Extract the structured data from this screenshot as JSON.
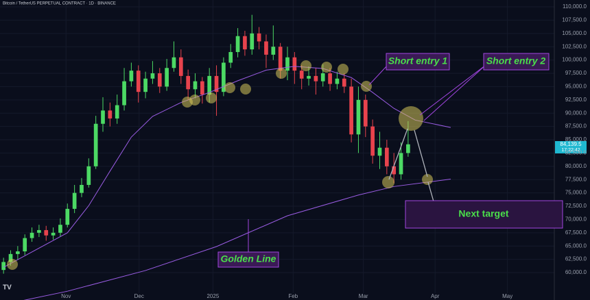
{
  "chart_data": {
    "type": "candlestick",
    "title": "Bitcoin / TetherUS PERPETUAL CONTRACT · 1D · BINANCE",
    "up_color": "#4cd964",
    "down_color": "#e8434d",
    "open": [
      60500,
      62000,
      63500,
      64000,
      66500,
      67500,
      68000,
      67000,
      67500,
      69000,
      72000,
      75000,
      76500,
      80000,
      88000,
      90500,
      89000,
      91500,
      96000,
      98000,
      94000,
      96500,
      97500,
      95000,
      98500,
      100500,
      97000,
      94500,
      96000,
      93500,
      97000,
      94000,
      99500,
      101500,
      104500,
      102000,
      105000,
      103500,
      101000,
      102500,
      98000,
      100500,
      98000,
      96500,
      97000,
      96000,
      97500,
      95500,
      96500,
      95000,
      86000,
      92500,
      87500,
      82000,
      83500,
      80000,
      78500,
      82500
    ],
    "high": [
      62800,
      64200,
      65000,
      67200,
      68500,
      69000,
      68800,
      68500,
      70200,
      73000,
      76500,
      77800,
      81500,
      89500,
      93000,
      92000,
      93500,
      98500,
      99500,
      99000,
      97800,
      99800,
      98500,
      100200,
      103500,
      102000,
      98200,
      97500,
      96800,
      98500,
      99000,
      100500,
      103000,
      106000,
      105500,
      108500,
      106200,
      104800,
      106500,
      103200,
      102500,
      101500,
      99000,
      98800,
      98500,
      99200,
      98500,
      97800,
      97500,
      96500,
      95000,
      93500,
      88800,
      86500,
      85000,
      82500,
      84500,
      88500
    ],
    "low": [
      59800,
      61300,
      62500,
      63300,
      65800,
      66700,
      66000,
      66200,
      66800,
      68500,
      71200,
      74200,
      76000,
      79500,
      86500,
      87500,
      88000,
      90500,
      95000,
      92000,
      92800,
      95500,
      93800,
      94200,
      97800,
      95500,
      92500,
      92800,
      91800,
      92000,
      89500,
      93200,
      98500,
      100500,
      100800,
      101000,
      102000,
      98500,
      100000,
      96500,
      96200,
      95500,
      94500,
      95200,
      93500,
      95000,
      94200,
      94500,
      93800,
      84500,
      82500,
      85500,
      80500,
      79500,
      78500,
      76800,
      77500,
      81800
    ],
    "close": [
      62000,
      63500,
      64000,
      66500,
      67500,
      68000,
      67000,
      67500,
      69000,
      72000,
      75000,
      76500,
      80000,
      88000,
      90500,
      89000,
      91500,
      96000,
      98000,
      94000,
      96500,
      97500,
      95000,
      98500,
      100500,
      97000,
      94500,
      96000,
      93500,
      97000,
      94000,
      99500,
      101500,
      104500,
      102000,
      105000,
      103500,
      101000,
      102500,
      98000,
      100500,
      98000,
      96500,
      97000,
      96000,
      97500,
      95500,
      96500,
      95000,
      86000,
      92500,
      87500,
      82000,
      83500,
      80000,
      78500,
      82500,
      84139.5
    ],
    "lines": [
      {
        "color": "#9b5de5",
        "x": [
          0,
          9,
          12,
          15,
          18,
          21,
          25,
          29,
          33,
          37,
          41,
          45,
          49,
          52,
          55,
          58,
          63
        ],
        "values": [
          61000,
          67500,
          72600,
          79100,
          85500,
          89400,
          92000,
          93900,
          96100,
          98100,
          98800,
          98400,
          96700,
          93900,
          90900,
          88700,
          87300
        ]
      },
      {
        "color": "#9b5de5",
        "x": [
          0,
          9,
          20,
          30,
          40,
          50,
          55,
          63
        ],
        "values": [
          54000,
          56500,
          60400,
          64900,
          70700,
          74600,
          76200,
          77600
        ]
      }
    ],
    "xlim": [
      -0.5,
      77.6
    ],
    "ylim": [
      54850,
      111290
    ],
    "xticks": [
      {
        "value": 8.8,
        "label": "Nov"
      },
      {
        "value": 19.1,
        "label": "Dec"
      },
      {
        "value": 29.5,
        "label": "2025"
      },
      {
        "value": 40.8,
        "label": "Feb"
      },
      {
        "value": 50.7,
        "label": "Mar"
      },
      {
        "value": 60.8,
        "label": "Apr"
      },
      {
        "value": 71.0,
        "label": "May"
      }
    ],
    "yticks": [
      {
        "value": 60000,
        "label": "60,000.0"
      },
      {
        "value": 62500,
        "label": "62,500.0"
      },
      {
        "value": 65000,
        "label": "65,000.0"
      },
      {
        "value": 67500,
        "label": "67,500.0"
      },
      {
        "value": 70000,
        "label": "70,000.0"
      },
      {
        "value": 72500,
        "label": "72,500.0"
      },
      {
        "value": 75000,
        "label": "75,000.0"
      },
      {
        "value": 77500,
        "label": "77,500.0"
      },
      {
        "value": 80000,
        "label": "80,000.0"
      },
      {
        "value": 82500,
        "label": "82,500.0"
      },
      {
        "value": 85000,
        "label": "85,000.0"
      },
      {
        "value": 87500,
        "label": "87,500.0"
      },
      {
        "value": 90000,
        "label": "90,000.0"
      },
      {
        "value": 92500,
        "label": "92,500.0"
      },
      {
        "value": 95000,
        "label": "95,000.0"
      },
      {
        "value": 97500,
        "label": "97,500.0"
      },
      {
        "value": 100000,
        "label": "100,000.0"
      },
      {
        "value": 102500,
        "label": "102,500.0"
      },
      {
        "value": 105000,
        "label": "105,000.0"
      },
      {
        "value": 107500,
        "label": "107,500.0"
      },
      {
        "value": 110000,
        "label": "110,000.0"
      }
    ],
    "price_tag": "84,139.5",
    "countdown": "17:22:42",
    "annotations": [
      "Short entry 1",
      "Short entry 2",
      "Golden Line",
      "Next target"
    ]
  }
}
